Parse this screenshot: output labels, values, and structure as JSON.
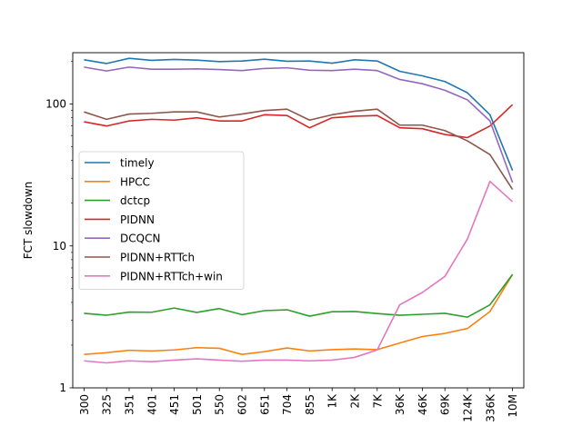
{
  "chart_data": {
    "type": "line",
    "title": "",
    "xlabel": "",
    "ylabel": "FCT slowdown",
    "yscale": "log",
    "ylim": [
      1,
      230
    ],
    "yticks": [
      {
        "value": 1,
        "label": "1"
      },
      {
        "value": 10,
        "label": "10"
      },
      {
        "value": 100,
        "label": "100"
      }
    ],
    "grid": false,
    "legend_position": "center-left",
    "categories": [
      "300",
      "325",
      "351",
      "401",
      "451",
      "501",
      "550",
      "602",
      "651",
      "704",
      "855",
      "1K",
      "2K",
      "7K",
      "36K",
      "46K",
      "69K",
      "124K",
      "336K",
      "10M"
    ],
    "series": [
      {
        "name": "timely",
        "color": "#1f77b4",
        "values": [
          205,
          193,
          210,
          203,
          206,
          204,
          199,
          201,
          207,
          200,
          201,
          194,
          205,
          201,
          170,
          158,
          144,
          120,
          84,
          34
        ]
      },
      {
        "name": "HPCC",
        "color": "#ff7f0e",
        "values": [
          1.72,
          1.77,
          1.84,
          1.82,
          1.85,
          1.92,
          1.9,
          1.72,
          1.8,
          1.91,
          1.82,
          1.86,
          1.88,
          1.86,
          2.07,
          2.3,
          2.42,
          2.62,
          3.45,
          6.3
        ]
      },
      {
        "name": "dctcp",
        "color": "#2ca02c",
        "values": [
          3.35,
          3.25,
          3.42,
          3.41,
          3.65,
          3.4,
          3.62,
          3.28,
          3.5,
          3.55,
          3.2,
          3.44,
          3.45,
          3.34,
          3.25,
          3.3,
          3.35,
          3.15,
          3.85,
          6.3
        ]
      },
      {
        "name": "PIDNN",
        "color": "#d62728",
        "values": [
          75,
          70,
          76,
          78,
          77,
          80,
          76,
          76,
          84,
          83,
          68,
          80,
          82,
          83,
          68,
          67,
          61,
          58,
          70,
          99
        ]
      },
      {
        "name": "DCQCN",
        "color": "#9467bd",
        "values": [
          182,
          171,
          182,
          176,
          176,
          177,
          175,
          172,
          178,
          180,
          173,
          172,
          176,
          172,
          149,
          139,
          125,
          107,
          76,
          28
        ]
      },
      {
        "name": "PIDNN+RTTch",
        "color": "#8c564b",
        "values": [
          88,
          78,
          85,
          86,
          88,
          88,
          81,
          85,
          90,
          92,
          77,
          84,
          89,
          92,
          71,
          71,
          65,
          55,
          44,
          25
        ]
      },
      {
        "name": "PIDNN+RTTch+win",
        "color": "#e377c2",
        "values": [
          1.55,
          1.5,
          1.55,
          1.53,
          1.57,
          1.6,
          1.57,
          1.54,
          1.57,
          1.57,
          1.55,
          1.57,
          1.64,
          1.85,
          3.85,
          4.7,
          6.1,
          11.2,
          28.5,
          20.5
        ]
      }
    ]
  }
}
